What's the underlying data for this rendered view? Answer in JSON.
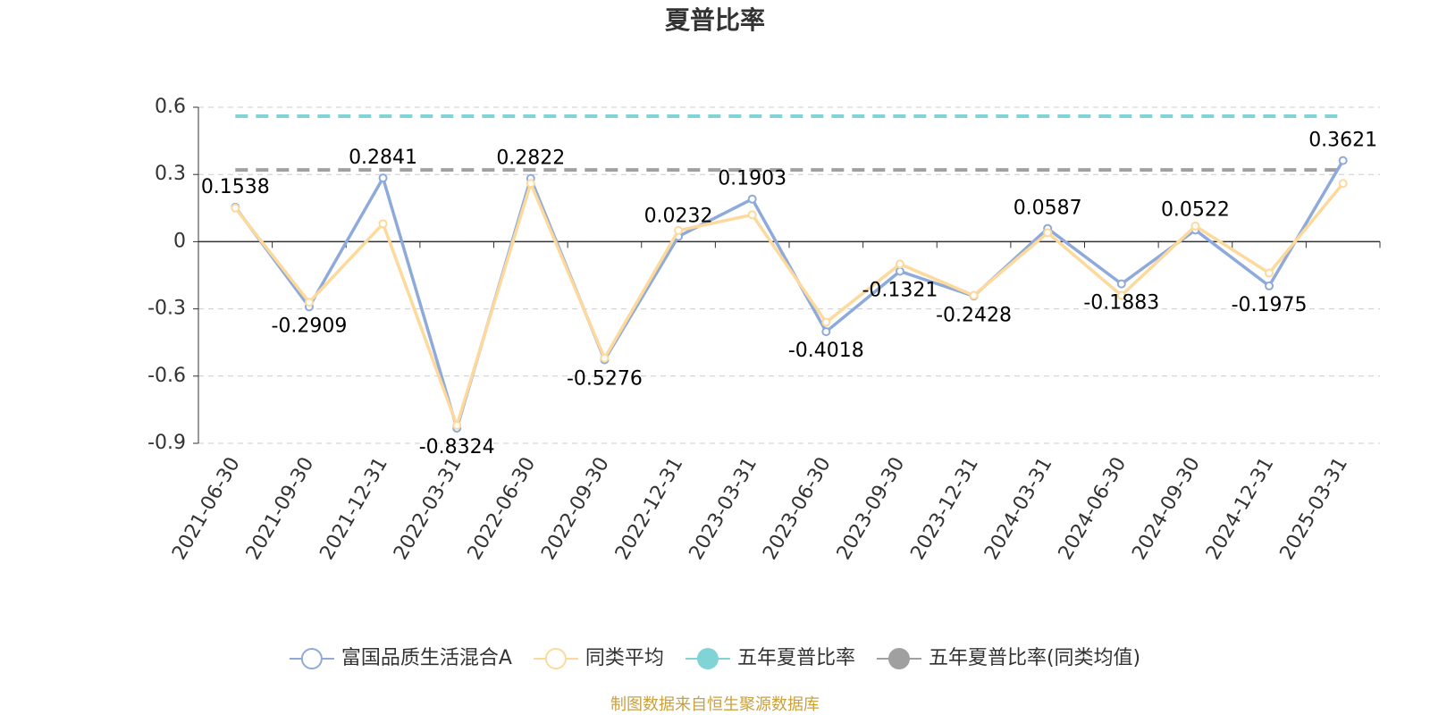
{
  "chart_data": {
    "type": "line",
    "title": "夏普比率",
    "source": "制图数据来自恒生聚源数据库",
    "categories": [
      "2021-06-30",
      "2021-09-30",
      "2021-12-31",
      "2022-03-31",
      "2022-06-30",
      "2022-09-30",
      "2022-12-31",
      "2023-03-31",
      "2023-06-30",
      "2023-09-30",
      "2023-12-31",
      "2024-03-31",
      "2024-06-30",
      "2024-09-30",
      "2024-12-31",
      "2025-03-31"
    ],
    "series": [
      {
        "name": "富国品质生活混合A",
        "color": "#8eaadb",
        "data_labels": true,
        "values": [
          0.1538,
          -0.2909,
          0.2841,
          -0.8324,
          0.2822,
          -0.5276,
          0.0232,
          0.1903,
          -0.4018,
          -0.1321,
          -0.2428,
          0.0587,
          -0.1883,
          0.0522,
          -0.1975,
          0.3621
        ]
      },
      {
        "name": "同类平均",
        "color": "#fdd99b",
        "data_labels": false,
        "values": [
          0.15,
          -0.27,
          0.08,
          -0.82,
          0.26,
          -0.52,
          0.05,
          0.12,
          -0.36,
          -0.1,
          -0.24,
          0.04,
          -0.24,
          0.07,
          -0.14,
          0.26
        ]
      }
    ],
    "reference_lines": [
      {
        "name": "五年夏普比率",
        "color": "#80d4d6",
        "value": 0.56
      },
      {
        "name": "五年夏普比率(同类均值)",
        "color": "#a0a0a0",
        "value": 0.32
      }
    ],
    "ylim": [
      -0.9,
      0.6
    ],
    "yticks": [
      -0.9,
      -0.6,
      -0.3,
      0,
      0.3,
      0.6
    ],
    "grid": true
  }
}
